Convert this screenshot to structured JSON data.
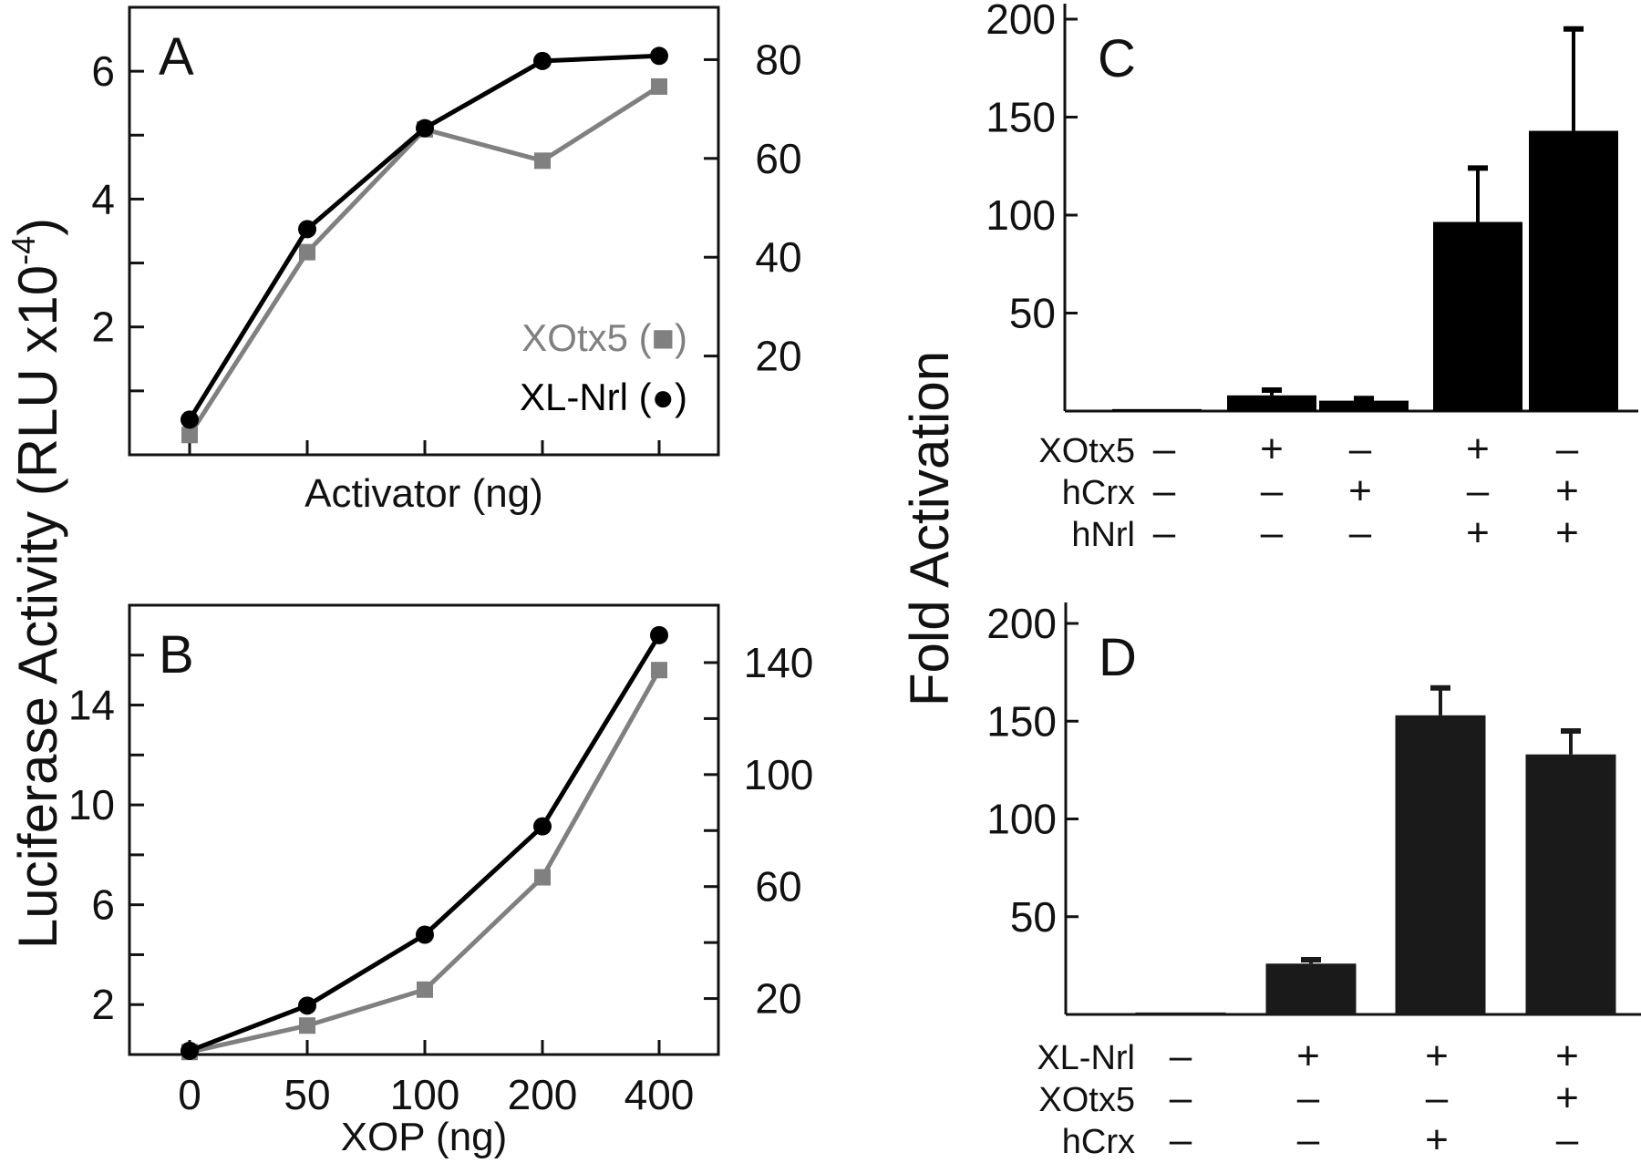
{
  "figure": {
    "left_ylabel_main": "Luciferase Activity (RLU x10",
    "left_ylabel_sup": "-4",
    "left_ylabel_close": ")",
    "right_ylabel": "Fold Activation"
  },
  "colors": {
    "xlnrl": "#000000",
    "xotx5": "#808080",
    "bar_c": "#000000",
    "bar_d": "#1a1a1a"
  },
  "chart_data": [
    {
      "panel": "A",
      "type": "line",
      "xlabel": "Activator (ng)",
      "x_tick_labels": [
        "",
        "",
        "",
        "",
        ""
      ],
      "x": [
        1,
        2,
        3,
        4,
        5
      ],
      "ylim_left": [
        0,
        7
      ],
      "yticks_left": [
        1,
        2,
        3,
        4,
        5,
        6
      ],
      "ytick_labels_left": [
        "",
        "2",
        "",
        "4",
        "",
        "6"
      ],
      "ylim_right": [
        0,
        90.6
      ],
      "yticks_right": [
        20,
        40,
        60,
        80
      ],
      "ytick_labels_right": [
        "20",
        "40",
        "60",
        "80"
      ],
      "series": [
        {
          "name": "XOtx5",
          "marker": "square",
          "legend": "XOtx5 (■)",
          "values": [
            0.31,
            3.17,
            5.09,
            4.6,
            5.76
          ]
        },
        {
          "name": "XL-Nrl",
          "marker": "circle",
          "legend": "XL-Nrl (●)",
          "values": [
            0.55,
            3.53,
            5.11,
            6.16,
            6.24
          ]
        }
      ],
      "legend_position": "bottom-right"
    },
    {
      "panel": "B",
      "type": "line",
      "xlabel": "XOP (ng)",
      "x_tick_labels": [
        "0",
        "50",
        "100",
        "200",
        "400"
      ],
      "x": [
        0,
        50,
        100,
        200,
        400
      ],
      "ylim_left": [
        0,
        18.0
      ],
      "yticks_left": [
        2,
        4,
        6,
        8,
        10,
        12,
        14,
        16
      ],
      "ytick_labels_left": [
        "2",
        "",
        "6",
        "",
        "10",
        "",
        "14",
        ""
      ],
      "ylim_right": [
        0,
        160.5
      ],
      "yticks_right": [
        20,
        40,
        60,
        80,
        100,
        120,
        140
      ],
      "ytick_labels_right": [
        "20",
        "",
        "60",
        "",
        "100",
        "",
        "140"
      ],
      "series": [
        {
          "name": "XOtx5",
          "marker": "square",
          "values": [
            0.1,
            1.16,
            2.6,
            7.1,
            15.4
          ]
        },
        {
          "name": "XL-Nrl",
          "marker": "circle",
          "values": [
            0.15,
            1.96,
            4.8,
            9.14,
            16.8
          ]
        }
      ]
    },
    {
      "panel": "C",
      "type": "bar",
      "ylabel": "Fold Activation",
      "ylim": [
        0,
        200
      ],
      "yticks": [
        50,
        100,
        150,
        200
      ],
      "ytick_labels": [
        "50",
        "100",
        "150",
        "200"
      ],
      "values": [
        1,
        8,
        5.3,
        96.5,
        143
      ],
      "errors": [
        0,
        2.7,
        1.1,
        27.5,
        52
      ],
      "conditions": {
        "rows": [
          "XOtx5",
          "hCrx",
          "hNrl"
        ],
        "signs": [
          [
            "–",
            "+",
            "–",
            "+",
            "–"
          ],
          [
            "–",
            "–",
            "+",
            "–",
            "+"
          ],
          [
            "–",
            "–",
            "–",
            "+",
            "+"
          ]
        ]
      }
    },
    {
      "panel": "D",
      "type": "bar",
      "ylabel": "Fold Activation",
      "ylim": [
        0,
        200
      ],
      "yticks": [
        50,
        100,
        150,
        200
      ],
      "ytick_labels": [
        "50",
        "100",
        "150",
        "200"
      ],
      "values": [
        1,
        26,
        153,
        133
      ],
      "errors": [
        0,
        2,
        14,
        12
      ],
      "conditions": {
        "rows": [
          "XL-Nrl",
          "XOtx5",
          "hCrx"
        ],
        "signs": [
          [
            "–",
            "+",
            "+",
            "+"
          ],
          [
            "–",
            "–",
            "–",
            "+"
          ],
          [
            "–",
            "–",
            "+",
            "–"
          ]
        ]
      }
    }
  ]
}
